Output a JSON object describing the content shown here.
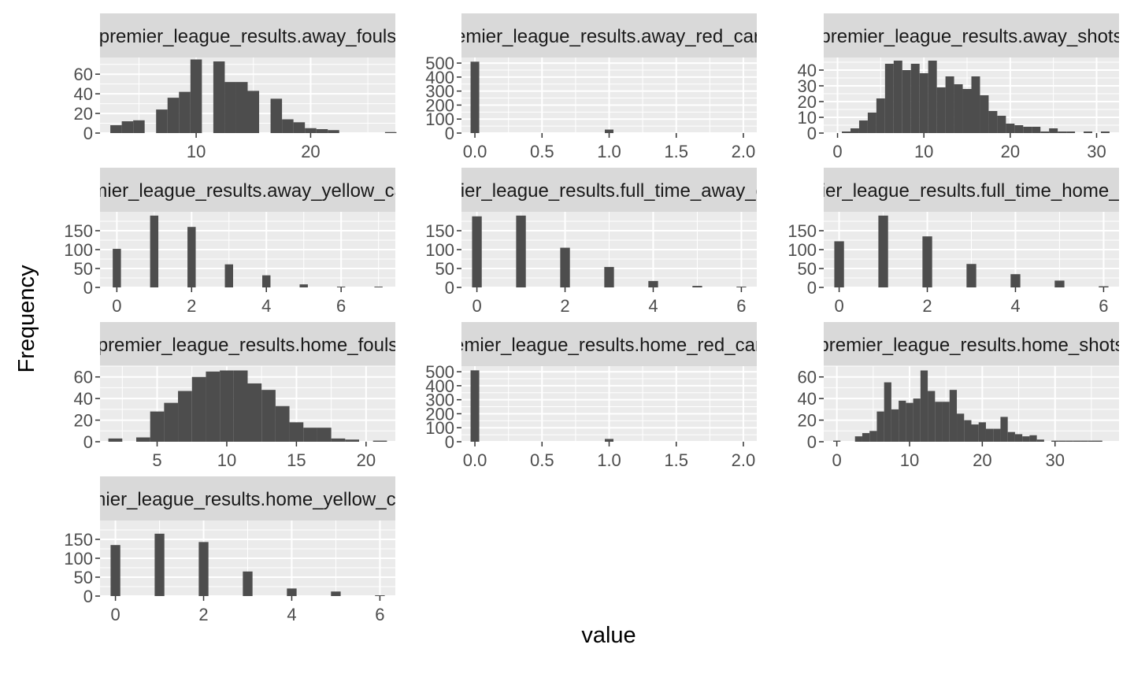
{
  "chart_data": {
    "type": "bar",
    "xlabel": "value",
    "ylabel": "Frequency",
    "grid": true,
    "facets": [
      {
        "title": "premier_league_results.away_fouls",
        "xlim": [
          1.6,
          27.4
        ],
        "ylim": [
          0,
          77
        ],
        "xticks": [
          10,
          20
        ],
        "yticks": [
          0,
          20,
          40,
          60
        ],
        "bins": [
          [
            3,
            8
          ],
          [
            4,
            12
          ],
          [
            5,
            13
          ],
          [
            6,
            0
          ],
          [
            7,
            24
          ],
          [
            8,
            36
          ],
          [
            9,
            42
          ],
          [
            10,
            75
          ],
          [
            11,
            0
          ],
          [
            12,
            73
          ],
          [
            13,
            52
          ],
          [
            14,
            52
          ],
          [
            15,
            43
          ],
          [
            16,
            0
          ],
          [
            17,
            35
          ],
          [
            18,
            14
          ],
          [
            19,
            11
          ],
          [
            20,
            5
          ],
          [
            21,
            4
          ],
          [
            22,
            3
          ],
          [
            23,
            0
          ],
          [
            24,
            0
          ],
          [
            25,
            0
          ],
          [
            26,
            0
          ],
          [
            27,
            1
          ]
        ]
      },
      {
        "title": "premier_league_results.away_red_cards",
        "xlim": [
          -0.1,
          2.1
        ],
        "ylim": [
          0,
          540
        ],
        "xticks": [
          0,
          0.5,
          1,
          1.5,
          2
        ],
        "ytick_labels": [
          "0",
          "100",
          "200",
          "300",
          "400",
          "500"
        ],
        "yticks": [
          0,
          100,
          200,
          300,
          400,
          500
        ],
        "bins": [
          [
            0,
            510
          ],
          [
            1,
            25
          ]
        ]
      },
      {
        "title": "premier_league_results.away_shots",
        "xlim": [
          -1.6,
          32.6
        ],
        "ylim": [
          0,
          48
        ],
        "xticks": [
          0,
          10,
          20,
          30
        ],
        "yticks": [
          0,
          10,
          20,
          30,
          40
        ],
        "bins": [
          [
            1,
            1
          ],
          [
            2,
            3
          ],
          [
            3,
            8
          ],
          [
            4,
            13
          ],
          [
            5,
            22
          ],
          [
            6,
            44
          ],
          [
            7,
            46
          ],
          [
            8,
            40
          ],
          [
            9,
            44
          ],
          [
            10,
            38
          ],
          [
            11,
            46
          ],
          [
            12,
            29
          ],
          [
            13,
            36
          ],
          [
            14,
            31
          ],
          [
            15,
            28
          ],
          [
            16,
            36
          ],
          [
            17,
            24
          ],
          [
            18,
            14
          ],
          [
            19,
            11
          ],
          [
            20,
            6
          ],
          [
            21,
            5
          ],
          [
            22,
            4
          ],
          [
            23,
            4
          ],
          [
            24,
            1
          ],
          [
            25,
            3
          ],
          [
            26,
            1
          ],
          [
            27,
            1
          ],
          [
            28,
            0
          ],
          [
            29,
            1
          ],
          [
            30,
            0
          ],
          [
            31,
            1
          ]
        ]
      },
      {
        "title": "premier_league_results.away_yellow_cards",
        "xlim": [
          -0.45,
          7.45
        ],
        "ylim": [
          0,
          200
        ],
        "xticks": [
          0,
          2,
          4,
          6
        ],
        "yticks": [
          0,
          50,
          100,
          150
        ],
        "bins": [
          [
            0,
            102
          ],
          [
            1,
            190
          ],
          [
            2,
            160
          ],
          [
            3,
            61
          ],
          [
            4,
            32
          ],
          [
            5,
            8
          ],
          [
            6,
            2
          ],
          [
            7,
            2
          ]
        ]
      },
      {
        "title": "premier_league_results.full_time_away_goals",
        "xlim": [
          -0.35,
          6.35
        ],
        "ylim": [
          0,
          200
        ],
        "xticks": [
          0,
          2,
          4,
          6
        ],
        "yticks": [
          0,
          50,
          100,
          150
        ],
        "bins": [
          [
            0,
            188
          ],
          [
            1,
            190
          ],
          [
            2,
            105
          ],
          [
            3,
            54
          ],
          [
            4,
            17
          ],
          [
            5,
            4
          ],
          [
            6,
            2
          ]
        ]
      },
      {
        "title": "premier_league_results.full_time_home_goals",
        "xlim": [
          -0.35,
          6.35
        ],
        "ylim": [
          0,
          200
        ],
        "xticks": [
          0,
          2,
          4,
          6
        ],
        "yticks": [
          0,
          50,
          100,
          150
        ],
        "bins": [
          [
            0,
            122
          ],
          [
            1,
            190
          ],
          [
            2,
            135
          ],
          [
            3,
            62
          ],
          [
            4,
            35
          ],
          [
            5,
            18
          ],
          [
            6,
            3
          ]
        ]
      },
      {
        "title": "premier_league_results.home_fouls",
        "xlim": [
          0.9,
          22.1
        ],
        "ylim": [
          0,
          70
        ],
        "xticks": [
          5,
          10,
          15,
          20
        ],
        "yticks": [
          0,
          20,
          40,
          60
        ],
        "bins": [
          [
            2,
            3
          ],
          [
            3,
            0
          ],
          [
            4,
            4
          ],
          [
            5,
            28
          ],
          [
            6,
            36
          ],
          [
            7,
            47
          ],
          [
            8,
            60
          ],
          [
            9,
            65
          ],
          [
            10,
            66
          ],
          [
            11,
            66
          ],
          [
            12,
            54
          ],
          [
            13,
            48
          ],
          [
            14,
            33
          ],
          [
            15,
            18
          ],
          [
            16,
            13
          ],
          [
            17,
            13
          ],
          [
            18,
            3
          ],
          [
            19,
            2
          ],
          [
            20,
            0
          ],
          [
            21,
            1
          ]
        ]
      },
      {
        "title": "premier_league_results.home_red_cards",
        "xlim": [
          -0.1,
          2.1
        ],
        "ylim": [
          0,
          540
        ],
        "xticks": [
          0,
          0.5,
          1,
          1.5,
          2
        ],
        "yticks": [
          0,
          100,
          200,
          300,
          400,
          500
        ],
        "bins": [
          [
            0,
            510
          ],
          [
            1,
            20
          ]
        ]
      },
      {
        "title": "premier_league_results.home_shots",
        "xlim": [
          -1.8,
          38.8
        ],
        "ylim": [
          0,
          70
        ],
        "xticks": [
          0,
          10,
          20,
          30
        ],
        "yticks": [
          0,
          20,
          40,
          60
        ],
        "bins": [
          [
            0,
            1
          ],
          [
            1,
            0
          ],
          [
            2,
            0
          ],
          [
            3,
            5
          ],
          [
            4,
            8
          ],
          [
            5,
            10
          ],
          [
            6,
            28
          ],
          [
            7,
            55
          ],
          [
            8,
            30
          ],
          [
            9,
            38
          ],
          [
            10,
            36
          ],
          [
            11,
            40
          ],
          [
            12,
            66
          ],
          [
            13,
            47
          ],
          [
            14,
            37
          ],
          [
            15,
            37
          ],
          [
            16,
            48
          ],
          [
            17,
            26
          ],
          [
            18,
            20
          ],
          [
            19,
            16
          ],
          [
            20,
            18
          ],
          [
            21,
            12
          ],
          [
            22,
            12
          ],
          [
            23,
            23
          ],
          [
            24,
            9
          ],
          [
            25,
            7
          ],
          [
            26,
            5
          ],
          [
            27,
            6
          ],
          [
            28,
            2
          ],
          [
            29,
            0
          ],
          [
            30,
            1
          ],
          [
            31,
            1
          ],
          [
            32,
            1
          ],
          [
            33,
            1
          ],
          [
            34,
            1
          ],
          [
            35,
            1
          ],
          [
            36,
            1
          ]
        ]
      },
      {
        "title": "premier_league_results.home_yellow_cards",
        "xlim": [
          -0.35,
          6.35
        ],
        "ylim": [
          0,
          200
        ],
        "xticks": [
          0,
          2,
          4,
          6
        ],
        "yticks": [
          0,
          50,
          100,
          150
        ],
        "bins": [
          [
            0,
            135
          ],
          [
            1,
            165
          ],
          [
            2,
            143
          ],
          [
            3,
            65
          ],
          [
            4,
            20
          ],
          [
            5,
            12
          ],
          [
            6,
            2
          ]
        ]
      }
    ]
  },
  "colors": {
    "panel_background": "#EBEBEB",
    "strip_background": "#D9D9D9",
    "grid_line": "#FFFFFF",
    "bar_fill": "#4D4D4D",
    "tick_text": "#4D4D4D",
    "tick_mark": "#333333"
  }
}
